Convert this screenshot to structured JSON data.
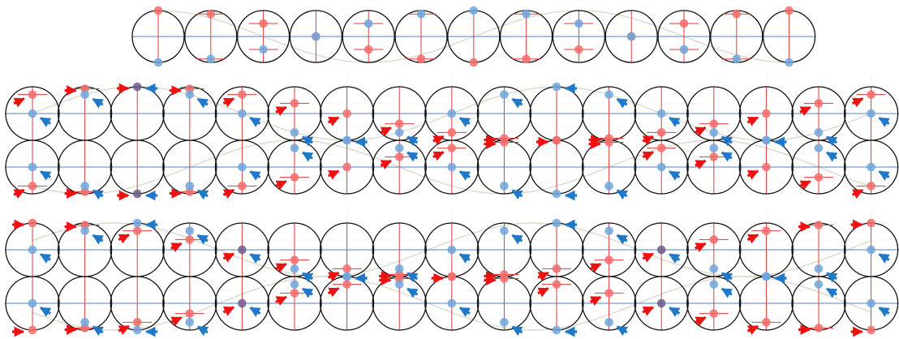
{
  "colors": {
    "red": "#ee1111",
    "blue": "#1f78c8",
    "ring": "#111111",
    "axis_blue": "#4f86bd",
    "axis_red": "#e23a3a",
    "grid": "#e3e3e3",
    "red_dot": "#f36b6b",
    "blue_dot": "#6ea6dc",
    "purple_dot": "#6c5a8c",
    "faint_curve": "#d9dccd"
  },
  "legend": {
    "red_arrow_icon": "red-arrow-icon",
    "blue_arrow_icon": "blue-arrow-icon"
  },
  "panels": [
    {
      "name": "top-row",
      "circle_count": 13,
      "rows": 1,
      "red_phase_deg": [
        -90,
        -60,
        -30,
        0,
        30,
        60,
        90,
        120,
        150,
        180,
        210,
        240,
        270
      ],
      "blue_phase_deg": [
        90,
        60,
        30,
        0,
        -30,
        -60,
        -90,
        -120,
        -150,
        -180,
        -210,
        -240,
        -270
      ]
    },
    {
      "name": "middle-panel",
      "circle_count": 17,
      "rows": 2,
      "step_deg": 45
    },
    {
      "name": "bottom-panel",
      "circle_count": 17,
      "rows": 2,
      "step_deg": 45
    }
  ]
}
